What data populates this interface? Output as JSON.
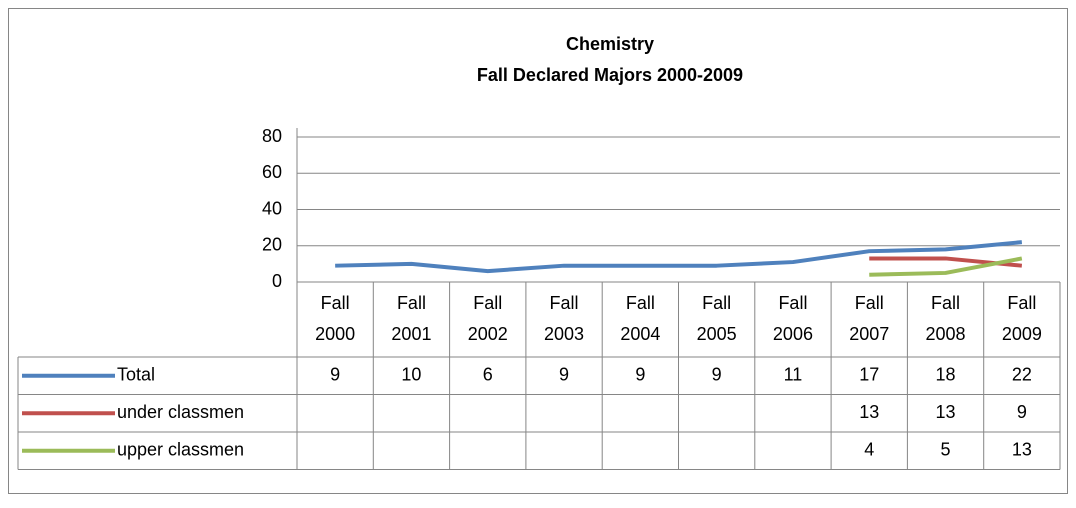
{
  "chart_data": {
    "type": "line",
    "title": [
      "Chemistry",
      "Fall Declared Majors 2000-2009"
    ],
    "categories": [
      "Fall 2000",
      "Fall 2001",
      "Fall 2002",
      "Fall 2003",
      "Fall 2004",
      "Fall 2005",
      "Fall 2006",
      "Fall 2007",
      "Fall 2008",
      "Fall 2009"
    ],
    "series": [
      {
        "name": "Total",
        "color": "#4f81bd",
        "values": [
          9,
          10,
          6,
          9,
          9,
          9,
          11,
          17,
          18,
          22
        ]
      },
      {
        "name": "under classmen",
        "color": "#c0504d",
        "values": [
          null,
          null,
          null,
          null,
          null,
          null,
          null,
          13,
          13,
          9
        ]
      },
      {
        "name": "upper classmen",
        "color": "#9bbb59",
        "values": [
          null,
          null,
          null,
          null,
          null,
          null,
          null,
          4,
          5,
          13
        ]
      }
    ],
    "ylim": [
      0,
      80
    ],
    "yticks": [
      0,
      20,
      40,
      60,
      80
    ],
    "grid": true
  }
}
